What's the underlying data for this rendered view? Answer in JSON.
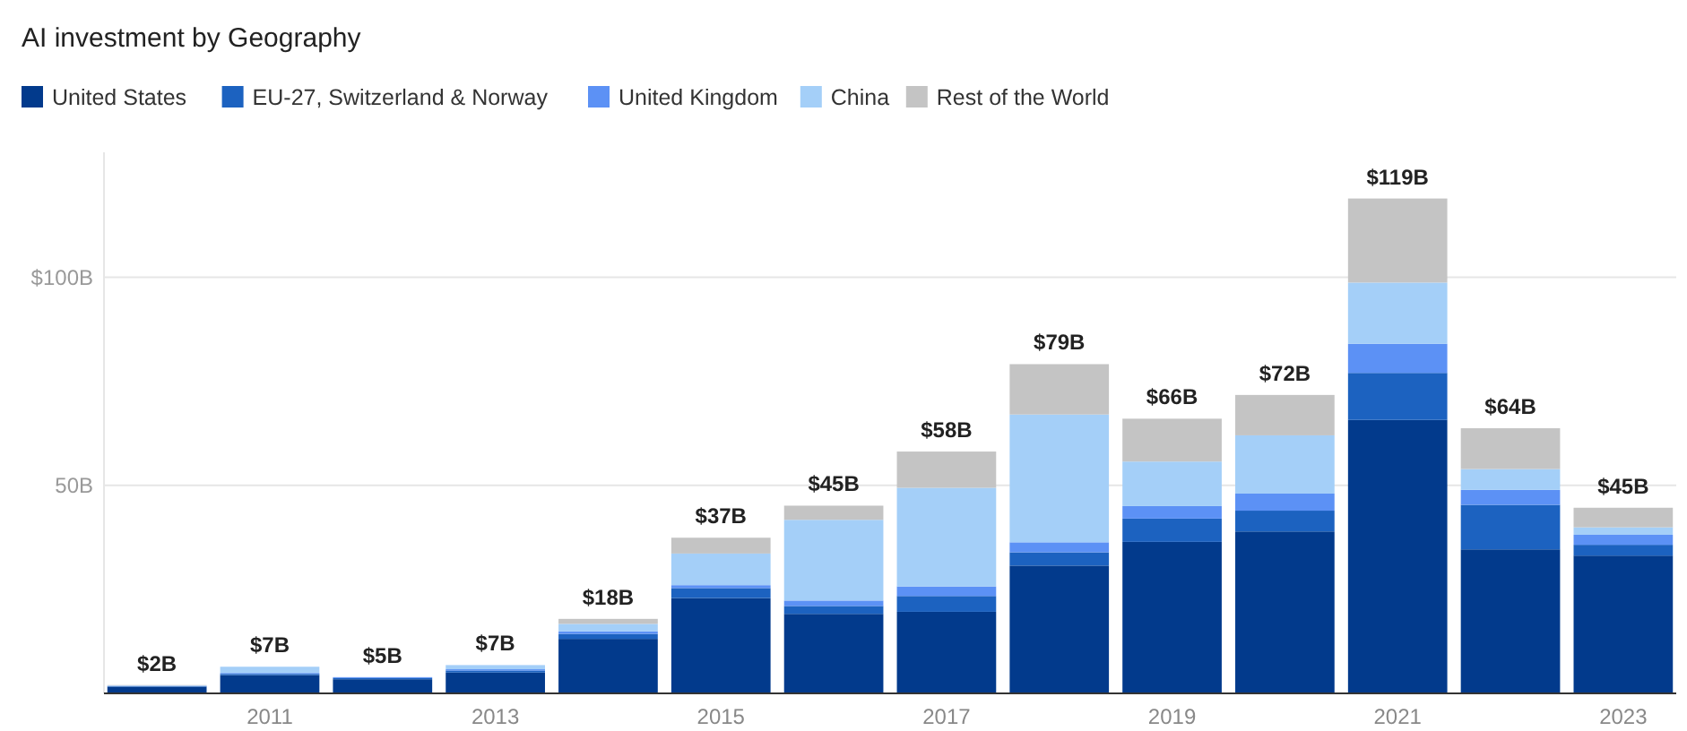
{
  "chart_data": {
    "type": "bar",
    "title": "AI investment by Geography",
    "stacked": true,
    "categories": [
      null,
      "2011",
      null,
      "2013",
      null,
      "2015",
      null,
      "2017",
      null,
      "2019",
      null,
      "2021",
      null,
      "2023"
    ],
    "series": [
      {
        "name": "United States",
        "color": "#023a8c",
        "values": [
          1.6,
          4.4,
          3.4,
          5.0,
          13.1,
          22.9,
          19.1,
          19.6,
          30.7,
          36.4,
          38.9,
          65.7,
          34.6,
          33.1
        ]
      },
      {
        "name": "EU-27, Switzerland & Norway",
        "color": "#1c62c0",
        "values": [
          0.1,
          0.3,
          0.3,
          0.5,
          1.2,
          2.4,
          1.9,
          3.8,
          3.2,
          5.6,
          5.0,
          11.3,
          10.7,
          2.6
        ]
      },
      {
        "name": "United Kingdom",
        "color": "#5c91f5",
        "values": [
          0.1,
          0.2,
          0.2,
          0.3,
          0.6,
          0.7,
          1.3,
          2.3,
          2.4,
          3.0,
          4.1,
          7.0,
          3.6,
          2.4
        ]
      },
      {
        "name": "China",
        "color": "#a4cff8",
        "values": [
          0.1,
          1.5,
          null,
          1.0,
          1.8,
          7.6,
          19.4,
          23.7,
          30.7,
          10.7,
          14.0,
          14.7,
          5.0,
          1.8
        ]
      },
      {
        "name": "Rest of the World",
        "color": "#c4c4c4",
        "values": [
          0.1,
          null,
          null,
          null,
          1.2,
          3.8,
          3.4,
          8.7,
          12.1,
          10.3,
          9.7,
          20.2,
          9.8,
          4.7
        ]
      }
    ],
    "totals": [
      "$2B",
      "$7B",
      "$5B",
      "$7B",
      "$18B",
      "$37B",
      "$45B",
      "$58B",
      "$79B",
      "$66B",
      "$72B",
      "$119B",
      "$64B",
      "$45B"
    ],
    "ylim": [
      0,
      130
    ],
    "yticks": [
      {
        "value": 50,
        "label": "50B"
      },
      {
        "value": 100,
        "label": "$100B"
      }
    ],
    "grid": "y",
    "legend": "top left"
  }
}
